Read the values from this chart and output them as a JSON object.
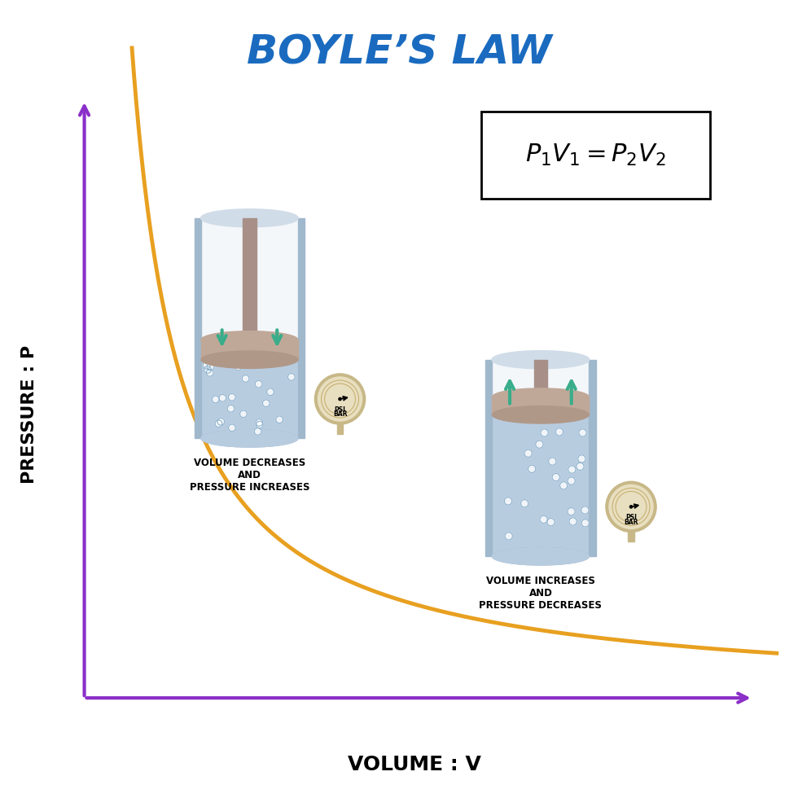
{
  "title": "BOYLE’S LAW",
  "title_color": "#1a6bbf",
  "formula": "P₁V₁=P₂V₂",
  "xlabel": "VOLUME : V",
  "ylabel": "PRESSURE : P",
  "axis_color": "#8b2fc9",
  "curve_color": "#e8a020",
  "background_color": "#ffffff",
  "label1": "VOLUME DECREASES\nAND\nPRESSURE INCREASES",
  "label2": "VOLUME INCREASES\nAND\nPRESSURE DECREASES",
  "cylinder_color_body": "#c8d8e8",
  "cylinder_color_border": "#a0b8cc",
  "piston_color": "#c0a898",
  "rod_color": "#a89088",
  "gas_color": "#b8cce0",
  "arrow_color": "#3aad8a",
  "gauge_body": "#e8dfc0",
  "gauge_border": "#c8b888"
}
